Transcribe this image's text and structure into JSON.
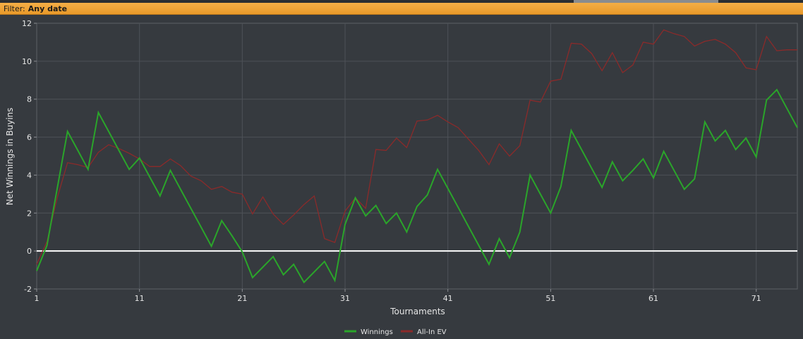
{
  "filter": {
    "label": "Filter:",
    "value": "Any date"
  },
  "chart_data": {
    "type": "line",
    "xlabel": "Tournaments",
    "ylabel": "Net Winnings in Buyins",
    "xlim": [
      1,
      75
    ],
    "ylim": [
      -2,
      12
    ],
    "xticks": [
      1,
      11,
      21,
      31,
      41,
      51,
      61,
      71
    ],
    "yticks": [
      -2,
      0,
      2,
      4,
      6,
      8,
      10,
      12
    ],
    "grid": true,
    "legend_position": "bottom-center",
    "zero_line": true,
    "series": [
      {
        "name": "Winnings",
        "color": "#2aa52a",
        "x": [
          1,
          2,
          3,
          4,
          5,
          6,
          7,
          8,
          9,
          10,
          11,
          12,
          13,
          14,
          15,
          16,
          17,
          18,
          19,
          20,
          21,
          22,
          23,
          24,
          25,
          26,
          27,
          28,
          29,
          30,
          31,
          32,
          33,
          34,
          35,
          36,
          37,
          38,
          39,
          40,
          41,
          42,
          43,
          44,
          45,
          46,
          47,
          48,
          49,
          50,
          51,
          52,
          53,
          54,
          55,
          56,
          57,
          58,
          59,
          60,
          61,
          62,
          63,
          64,
          65,
          66,
          67,
          68,
          69,
          70,
          71,
          72,
          73,
          74,
          75
        ],
        "values": [
          -1.05,
          0.3,
          3.3,
          6.3,
          5.3,
          4.3,
          7.3,
          6.3,
          5.3,
          4.3,
          4.9,
          3.9,
          2.9,
          4.25,
          3.25,
          2.25,
          1.25,
          0.25,
          1.6,
          0.8,
          -0.05,
          -1.4,
          -0.85,
          -0.3,
          -1.25,
          -0.7,
          -1.65,
          -1.1,
          -0.55,
          -1.55,
          1.4,
          2.8,
          1.85,
          2.4,
          1.45,
          2.0,
          1.0,
          2.35,
          2.95,
          4.3,
          3.3,
          2.3,
          1.3,
          0.3,
          -0.7,
          0.65,
          -0.35,
          1.0,
          4.0,
          3.0,
          2.0,
          3.4,
          6.35,
          5.35,
          4.35,
          3.35,
          4.7,
          3.7,
          4.25,
          4.85,
          3.85,
          5.25,
          4.25,
          3.25,
          3.8,
          6.8,
          5.8,
          6.35,
          5.35,
          5.95,
          4.95,
          7.95,
          8.5,
          7.5,
          6.5
        ]
      },
      {
        "name": "All-In EV",
        "color": "#8b2a2a",
        "x": [
          1,
          2,
          3,
          4,
          5,
          6,
          7,
          8,
          9,
          10,
          11,
          12,
          13,
          14,
          15,
          16,
          17,
          18,
          19,
          20,
          21,
          22,
          23,
          24,
          25,
          26,
          27,
          28,
          29,
          30,
          31,
          32,
          33,
          34,
          35,
          36,
          37,
          38,
          39,
          40,
          41,
          42,
          43,
          44,
          45,
          46,
          47,
          48,
          49,
          50,
          51,
          52,
          53,
          54,
          55,
          56,
          57,
          58,
          59,
          60,
          61,
          62,
          63,
          64,
          65,
          66,
          67,
          68,
          69,
          70,
          71,
          72,
          73,
          74,
          75
        ],
        "values": [
          -0.7,
          0.5,
          2.8,
          4.65,
          4.55,
          4.4,
          5.2,
          5.6,
          5.4,
          5.15,
          4.85,
          4.45,
          4.45,
          4.85,
          4.5,
          3.95,
          3.7,
          3.25,
          3.4,
          3.1,
          3.0,
          1.95,
          2.85,
          1.95,
          1.4,
          1.9,
          2.45,
          2.9,
          0.65,
          0.45,
          2.1,
          2.8,
          2.25,
          5.35,
          5.3,
          5.95,
          5.45,
          6.85,
          6.9,
          7.15,
          6.8,
          6.5,
          5.9,
          5.3,
          4.55,
          5.65,
          5.0,
          5.55,
          7.95,
          7.85,
          8.95,
          9.05,
          10.95,
          10.9,
          10.4,
          9.5,
          10.45,
          9.4,
          9.8,
          11.0,
          10.9,
          11.65,
          11.45,
          11.3,
          10.8,
          11.05,
          11.15,
          10.9,
          10.45,
          9.65,
          9.55,
          11.3,
          10.55,
          10.6,
          10.6
        ]
      }
    ]
  }
}
